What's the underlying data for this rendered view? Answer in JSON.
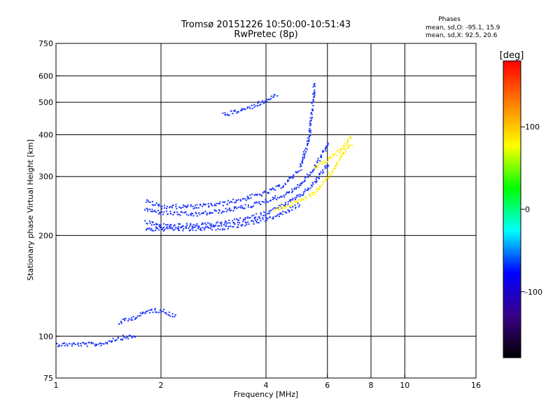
{
  "chart_data": {
    "type": "scatter",
    "title": "Tromsø 20151226 10:50:00-10:51:43",
    "subtitle": "RwPretec (8p)",
    "xlabel": "Frequency [MHz]",
    "ylabel": "Stationary phase Virtual Height [km]",
    "x_scale": "log",
    "y_scale": "log",
    "xlim": [
      1,
      16
    ],
    "ylim": [
      75,
      750
    ],
    "x_ticks": [
      1,
      2,
      4,
      6,
      8,
      10,
      16
    ],
    "x_tick_labels": [
      "1",
      "2",
      "4",
      "6",
      "8",
      "10",
      "16"
    ],
    "y_ticks": [
      75,
      100,
      200,
      300,
      400,
      500,
      600,
      750
    ],
    "y_tick_labels": [
      "75",
      "100",
      "200",
      "300",
      "400",
      "500",
      "600",
      "750"
    ],
    "x_gridlines": [
      2,
      4,
      6,
      8,
      10
    ],
    "y_gridlines": [
      100,
      200,
      300,
      400,
      500,
      600
    ],
    "grid": true,
    "stats": {
      "heading": "Phases",
      "line_o": "mean, sd,O: -95.1, 15.9",
      "line_x": "mean, sd,X:  92.5, 20.6"
    },
    "colorbar": {
      "label": "[deg]",
      "range": [
        -180,
        180
      ],
      "ticks": [
        100,
        0,
        -100
      ],
      "tick_labels": [
        "100",
        "0",
        "-100"
      ],
      "colors": [
        "#000000",
        "#3a008a",
        "#0000ff",
        "#00ffff",
        "#00ff00",
        "#ffff00",
        "#ff7f00",
        "#ff0000"
      ]
    },
    "series": [
      {
        "name": "O",
        "phase_deg": -95.1,
        "color": "#1a33ff",
        "traces": [
          {
            "x": [
              1.0,
              1.1,
              1.2,
              1.3,
              1.4
            ],
            "y": [
              95,
              95,
              95,
              95,
              96
            ]
          },
          {
            "x": [
              1.4,
              1.5,
              1.6,
              1.7
            ],
            "y": [
              97,
              99,
              100,
              100
            ]
          },
          {
            "x": [
              1.5,
              1.7,
              1.85,
              2.0,
              2.2
            ],
            "y": [
              110,
              115,
              120,
              120,
              115
            ]
          },
          {
            "x": [
              1.8,
              2.0,
              2.5,
              3.0,
              3.5,
              4.0,
              4.5,
              5.0,
              5.3,
              5.5
            ],
            "y": [
              255,
              245,
              245,
              250,
              260,
              270,
              285,
              320,
              400,
              580
            ]
          },
          {
            "x": [
              1.8,
              2.0,
              2.5,
              3.0,
              3.5,
              4.0,
              4.5,
              5.0,
              5.5,
              6.0
            ],
            "y": [
              240,
              235,
              232,
              238,
              245,
              255,
              265,
              285,
              320,
              380
            ]
          },
          {
            "x": [
              1.8,
              2.0,
              2.5,
              3.0,
              3.5,
              4.0,
              4.5,
              5.0,
              5.5,
              6.0
            ],
            "y": [
              220,
              215,
              215,
              218,
              225,
              235,
              248,
              265,
              290,
              330
            ]
          },
          {
            "x": [
              1.8,
              2.0,
              2.5,
              3.0,
              3.5,
              4.0,
              4.5,
              5.0
            ],
            "y": [
              210,
              210,
              210,
              212,
              218,
              225,
              235,
              250
            ]
          },
          {
            "x": [
              3.0,
              3.5,
              4.0,
              4.3
            ],
            "y": [
              460,
              480,
              510,
              530
            ]
          }
        ]
      },
      {
        "name": "X",
        "phase_deg": 92.5,
        "color": "#ffee00",
        "traces": [
          {
            "x": [
              4.2,
              4.5,
              5.0,
              5.5,
              6.0,
              6.5,
              7.0
            ],
            "y": [
              240,
              245,
              255,
              270,
              300,
              340,
              380
            ]
          },
          {
            "x": [
              5.5,
              6.0,
              6.5,
              7.0
            ],
            "y": [
              320,
              340,
              360,
              400
            ]
          }
        ]
      }
    ]
  }
}
